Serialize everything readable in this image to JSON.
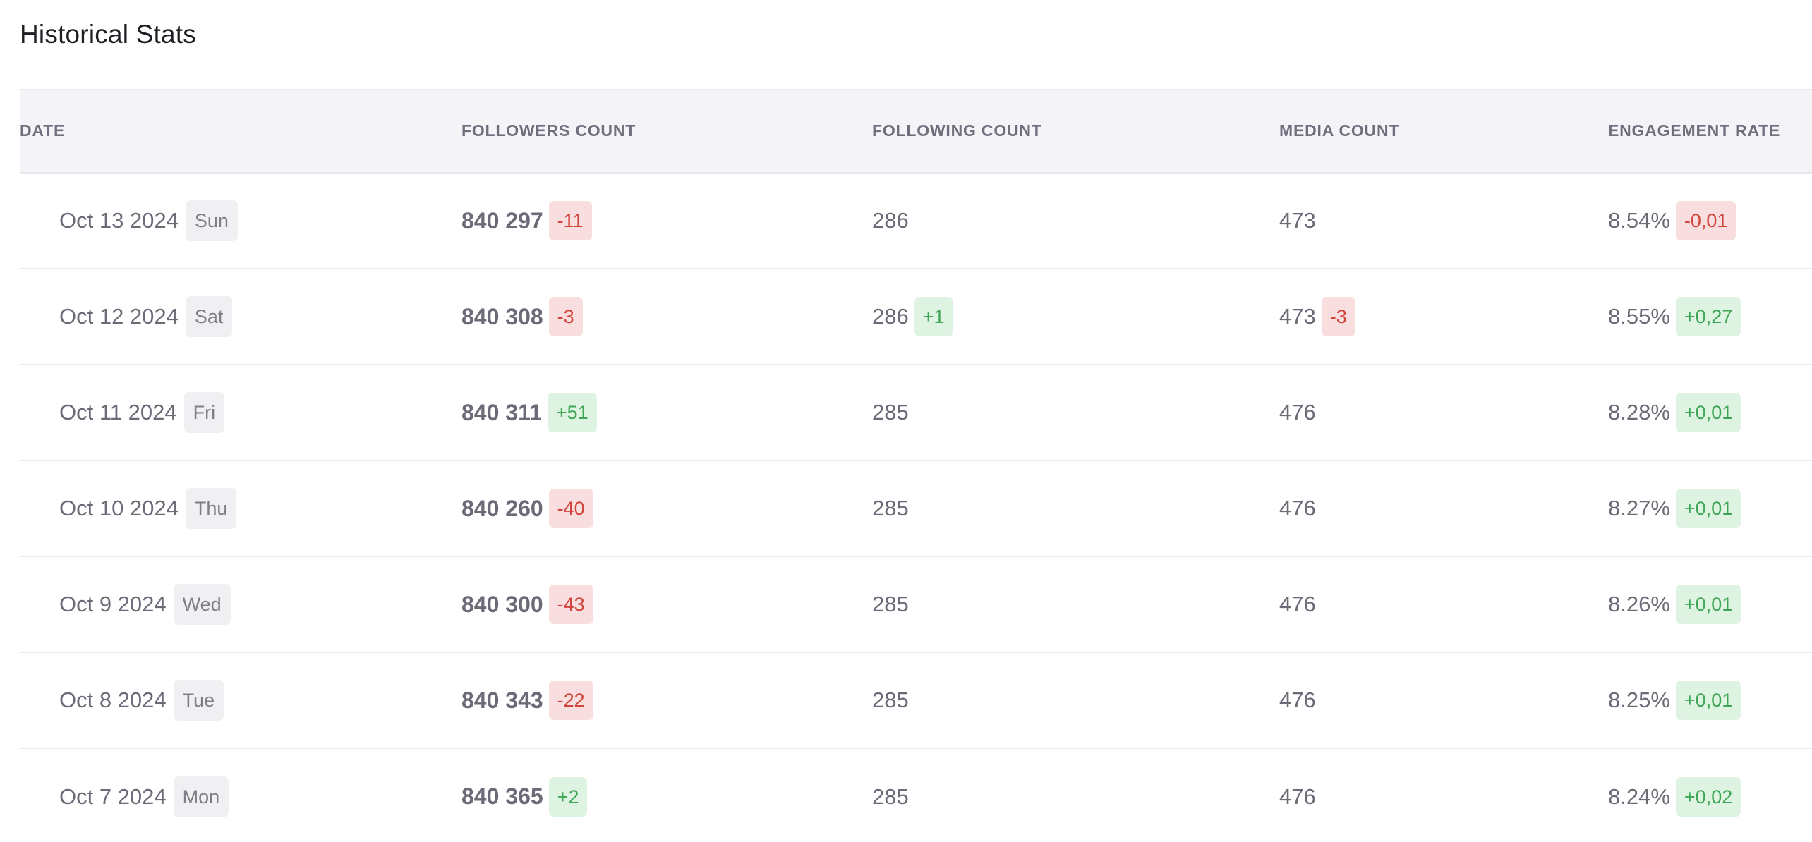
{
  "title": "Historical Stats",
  "columns": {
    "date": "DATE",
    "followers": "FOLLOWERS COUNT",
    "following": "FOLLOWING COUNT",
    "media": "MEDIA COUNT",
    "engagement": "ENGAGEMENT RATE"
  },
  "colors": {
    "negative_text": "#d1443b",
    "negative_bg": "#f8dede",
    "positive_text": "#3fa655",
    "positive_bg": "#dff3e3",
    "header_bg": "#f3f3f8"
  },
  "rows": [
    {
      "date": "Oct 13 2024",
      "day": "Sun",
      "followers": "840 297",
      "followers_delta": "-11",
      "following": "286",
      "following_delta": "",
      "media": "473",
      "media_delta": "",
      "engagement": "8.54%",
      "engagement_delta": "-0,01"
    },
    {
      "date": "Oct 12 2024",
      "day": "Sat",
      "followers": "840 308",
      "followers_delta": "-3",
      "following": "286",
      "following_delta": "+1",
      "media": "473",
      "media_delta": "-3",
      "engagement": "8.55%",
      "engagement_delta": "+0,27"
    },
    {
      "date": "Oct 11 2024",
      "day": "Fri",
      "followers": "840 311",
      "followers_delta": "+51",
      "following": "285",
      "following_delta": "",
      "media": "476",
      "media_delta": "",
      "engagement": "8.28%",
      "engagement_delta": "+0,01"
    },
    {
      "date": "Oct 10 2024",
      "day": "Thu",
      "followers": "840 260",
      "followers_delta": "-40",
      "following": "285",
      "following_delta": "",
      "media": "476",
      "media_delta": "",
      "engagement": "8.27%",
      "engagement_delta": "+0,01"
    },
    {
      "date": "Oct 9 2024",
      "day": "Wed",
      "followers": "840 300",
      "followers_delta": "-43",
      "following": "285",
      "following_delta": "",
      "media": "476",
      "media_delta": "",
      "engagement": "8.26%",
      "engagement_delta": "+0,01"
    },
    {
      "date": "Oct 8 2024",
      "day": "Tue",
      "followers": "840 343",
      "followers_delta": "-22",
      "following": "285",
      "following_delta": "",
      "media": "476",
      "media_delta": "",
      "engagement": "8.25%",
      "engagement_delta": "+0,01"
    },
    {
      "date": "Oct 7 2024",
      "day": "Mon",
      "followers": "840 365",
      "followers_delta": "+2",
      "following": "285",
      "following_delta": "",
      "media": "476",
      "media_delta": "",
      "engagement": "8.24%",
      "engagement_delta": "+0,02"
    }
  ]
}
